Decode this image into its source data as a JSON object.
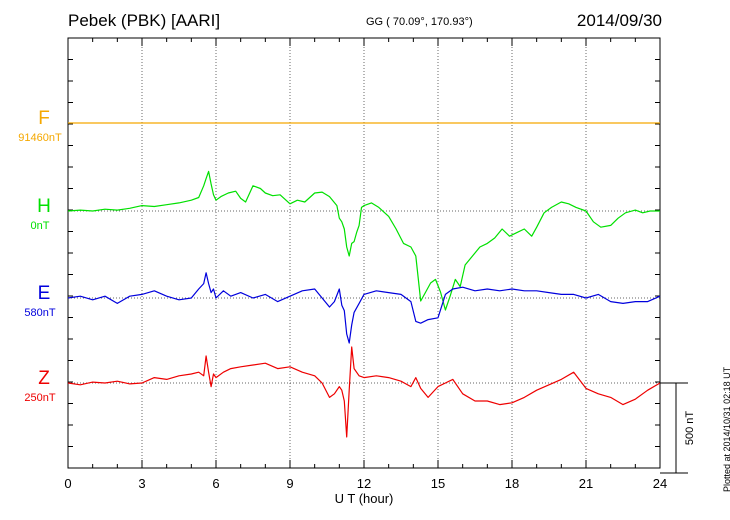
{
  "header": {
    "station": "Pebek (PBK)  [AARI]",
    "coords": "GG ( 70.09°, 170.93°)",
    "date": "2014/09/30"
  },
  "footer": {
    "plotted": "Plotted at 2014/10/31 02:18 UT"
  },
  "chart_data": {
    "type": "line",
    "xlabel": "U T (hour)",
    "xlim": [
      0,
      24
    ],
    "xticks": [
      "0",
      "3",
      "6",
      "9",
      "12",
      "15",
      "18",
      "21",
      "24"
    ],
    "scale_label": "500 nT",
    "scale_nT": 500,
    "grid": true,
    "series": [
      {
        "name": "F",
        "baseline_label": "91460nT",
        "color": "#f5a800",
        "baseline_color": "#f5a800",
        "x": [
          0,
          24
        ],
        "y": [
          0,
          0
        ]
      },
      {
        "name": "H",
        "baseline_label": "0nT",
        "color": "#00e000",
        "x": [
          0,
          0.5,
          1,
          1.5,
          2,
          2.5,
          3,
          3.5,
          4,
          4.5,
          5,
          5.3,
          5.5,
          5.6,
          5.7,
          5.8,
          5.9,
          6,
          6.2,
          6.5,
          6.8,
          7,
          7.2,
          7.5,
          7.8,
          8,
          8.3,
          8.6,
          9,
          9.3,
          9.6,
          10,
          10.3,
          10.6,
          10.9,
          11,
          11.1,
          11.2,
          11.3,
          11.4,
          11.5,
          11.6,
          11.7,
          11.8,
          11.9,
          12,
          12.3,
          12.6,
          13,
          13.3,
          13.6,
          13.9,
          14.1,
          14.3,
          14.5,
          14.7,
          14.9,
          15.1,
          15.3,
          15.5,
          15.7,
          15.9,
          16.1,
          16.4,
          16.7,
          17,
          17.3,
          17.6,
          17.9,
          18.2,
          18.5,
          18.8,
          19,
          19.3,
          19.6,
          20,
          20.3,
          20.6,
          21,
          21.3,
          21.6,
          22,
          22.3,
          22.6,
          23,
          23.3,
          23.6,
          24
        ],
        "y": [
          0,
          5,
          0,
          10,
          5,
          15,
          30,
          25,
          35,
          45,
          60,
          75,
          140,
          180,
          220,
          150,
          90,
          60,
          80,
          100,
          110,
          70,
          50,
          140,
          125,
          100,
          85,
          90,
          40,
          60,
          50,
          100,
          105,
          80,
          30,
          -40,
          -60,
          -100,
          -200,
          -250,
          -180,
          -170,
          -120,
          -80,
          20,
          30,
          45,
          20,
          -30,
          -100,
          -180,
          -200,
          -250,
          -500,
          -450,
          -400,
          -380,
          -450,
          -550,
          -470,
          -380,
          -420,
          -300,
          -250,
          -200,
          -180,
          -150,
          -100,
          -140,
          -120,
          -100,
          -140,
          -90,
          -10,
          20,
          50,
          40,
          20,
          0,
          -60,
          -90,
          -80,
          -40,
          -10,
          5,
          -10,
          0,
          0
        ]
      },
      {
        "name": "E",
        "baseline_label": "580nT",
        "color": "#0000dd",
        "x": [
          0,
          0.5,
          1,
          1.5,
          2,
          2.5,
          3,
          3.5,
          4,
          4.5,
          5,
          5.3,
          5.5,
          5.6,
          5.7,
          5.8,
          5.9,
          6,
          6.3,
          6.6,
          7,
          7.5,
          8,
          8.5,
          9,
          9.5,
          10,
          10.3,
          10.6,
          10.8,
          11,
          11.1,
          11.2,
          11.3,
          11.4,
          11.5,
          11.6,
          11.8,
          12,
          12.5,
          13,
          13.5,
          13.9,
          14.1,
          14.3,
          14.6,
          15,
          15.3,
          15.6,
          16,
          16.5,
          17,
          17.5,
          18,
          18.5,
          19,
          19.5,
          20,
          20.5,
          21,
          21.5,
          22,
          22.5,
          23,
          23.5,
          24
        ],
        "y": [
          0,
          10,
          -10,
          10,
          -30,
          10,
          20,
          40,
          10,
          -10,
          0,
          50,
          80,
          140,
          80,
          30,
          50,
          0,
          40,
          10,
          30,
          0,
          20,
          -20,
          10,
          40,
          50,
          0,
          -50,
          -20,
          50,
          -40,
          -70,
          -200,
          -250,
          -150,
          -80,
          -30,
          20,
          40,
          30,
          20,
          -20,
          -130,
          -140,
          -120,
          -110,
          20,
          50,
          60,
          40,
          50,
          40,
          50,
          40,
          40,
          30,
          20,
          20,
          0,
          20,
          -20,
          -30,
          -20,
          -20,
          10
        ]
      },
      {
        "name": "Z",
        "baseline_label": "250nT",
        "color": "#ee0000",
        "x": [
          0,
          0.5,
          1,
          1.5,
          2,
          2.5,
          3,
          3.5,
          4,
          4.5,
          5,
          5.3,
          5.5,
          5.6,
          5.7,
          5.8,
          5.9,
          6,
          6.3,
          6.6,
          7,
          7.5,
          8,
          8.5,
          9,
          9.5,
          10,
          10.3,
          10.6,
          10.8,
          11,
          11.1,
          11.2,
          11.3,
          11.4,
          11.5,
          11.6,
          11.8,
          12,
          12.5,
          13,
          13.5,
          13.9,
          14.1,
          14.3,
          14.6,
          15,
          15.3,
          15.6,
          16,
          16.5,
          17,
          17.5,
          18,
          18.5,
          19,
          19.5,
          20,
          20.5,
          21,
          21.5,
          22,
          22.5,
          23,
          23.5,
          24
        ],
        "y": [
          0,
          -10,
          5,
          0,
          10,
          -5,
          0,
          30,
          20,
          40,
          50,
          60,
          40,
          150,
          60,
          -20,
          50,
          30,
          60,
          80,
          90,
          100,
          110,
          80,
          90,
          60,
          40,
          0,
          -80,
          -60,
          -20,
          -40,
          -100,
          -300,
          -40,
          200,
          80,
          40,
          30,
          40,
          30,
          10,
          -20,
          30,
          -30,
          -80,
          -20,
          0,
          20,
          -60,
          -100,
          -100,
          -120,
          -110,
          -80,
          -40,
          -10,
          20,
          60,
          -30,
          -60,
          -80,
          -120,
          -90,
          -40,
          0
        ]
      }
    ]
  }
}
